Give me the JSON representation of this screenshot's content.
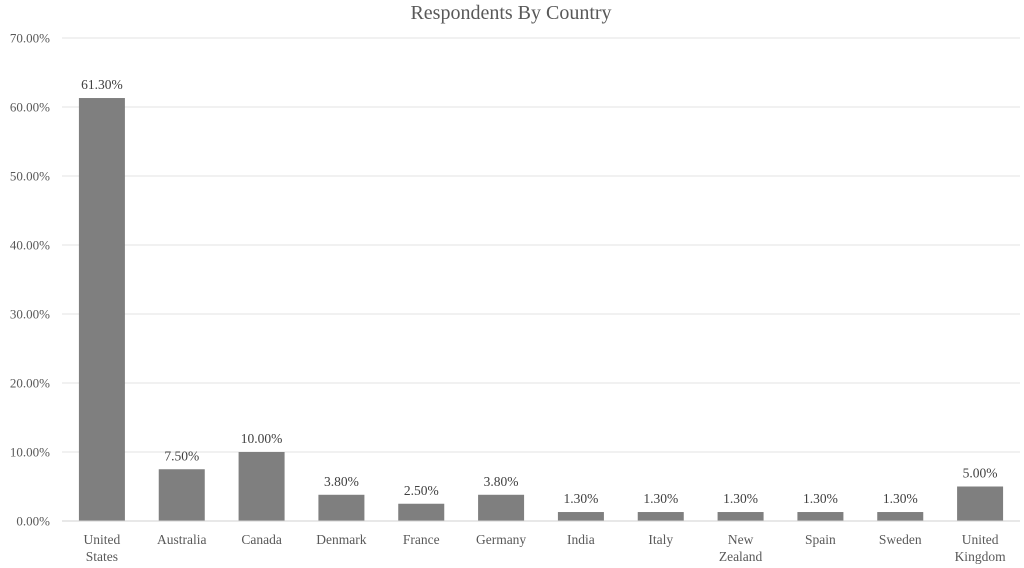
{
  "chart_data": {
    "type": "bar",
    "title": "Respondents By Country",
    "xlabel": "",
    "ylabel": "",
    "categories": [
      "United States",
      "Australia",
      "Canada",
      "Denmark",
      "France",
      "Germany",
      "India",
      "Italy",
      "New Zealand",
      "Spain",
      "Sweden",
      "United Kingdom"
    ],
    "values": [
      61.3,
      7.5,
      10.0,
      3.8,
      2.5,
      3.8,
      1.3,
      1.3,
      1.3,
      1.3,
      1.3,
      5.0
    ],
    "data_labels": [
      "61.30%",
      "7.50%",
      "10.00%",
      "3.80%",
      "2.50%",
      "3.80%",
      "1.30%",
      "1.30%",
      "1.30%",
      "1.30%",
      "1.30%",
      "5.00%"
    ],
    "ylim": [
      0,
      70
    ],
    "yticks": [
      0,
      10,
      20,
      30,
      40,
      50,
      60,
      70
    ],
    "ytick_labels": [
      "0.00%",
      "10.00%",
      "20.00%",
      "30.00%",
      "40.00%",
      "50.00%",
      "60.00%",
      "70.00%"
    ],
    "grid": true,
    "legend": "none",
    "bar_color": "#7f7f7f"
  }
}
